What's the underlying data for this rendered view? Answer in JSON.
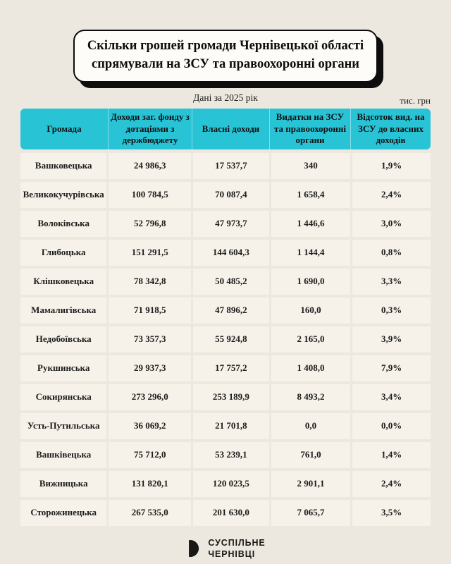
{
  "header": {
    "title_line1": "Скільки грошей громади Чернівецької області",
    "title_line2": "спрямували на ЗСУ та правоохоронні органи",
    "subtitle": "Дані за 2025 рік",
    "unit": "тис. грн"
  },
  "table": {
    "columns": [
      "Громада",
      "Доходи заг. фонду з дотаціями з держбюджету",
      "Власні доходи",
      "Видатки на ЗСУ та правоохоронні органи",
      "Відсоток вид. на ЗСУ до власних доходів"
    ],
    "rows": [
      {
        "name": "Вашковецька",
        "income_total": "24 986,3",
        "own_income": "17 537,7",
        "military_spend": "340",
        "percent": "1,9%"
      },
      {
        "name": "Великокучурівська",
        "income_total": "100 784,5",
        "own_income": "70 087,4",
        "military_spend": "1 658,4",
        "percent": "2,4%"
      },
      {
        "name": "Волоківська",
        "income_total": "52 796,8",
        "own_income": "47 973,7",
        "military_spend": "1 446,6",
        "percent": "3,0%"
      },
      {
        "name": "Глибоцька",
        "income_total": "151 291,5",
        "own_income": "144 604,3",
        "military_spend": "1 144,4",
        "percent": "0,8%"
      },
      {
        "name": "Клішковецька",
        "income_total": "78 342,8",
        "own_income": "50 485,2",
        "military_spend": "1 690,0",
        "percent": "3,3%"
      },
      {
        "name": "Мамалигівська",
        "income_total": "71 918,5",
        "own_income": "47 896,2",
        "military_spend": "160,0",
        "percent": "0,3%"
      },
      {
        "name": "Недобоївська",
        "income_total": "73 357,3",
        "own_income": "55 924,8",
        "military_spend": "2 165,0",
        "percent": "3,9%"
      },
      {
        "name": "Рукшинська",
        "income_total": "29 937,3",
        "own_income": "17 757,2",
        "military_spend": "1 408,0",
        "percent": "7,9%"
      },
      {
        "name": "Сокирянська",
        "income_total": "273 296,0",
        "own_income": "253 189,9",
        "military_spend": "8 493,2",
        "percent": "3,4%"
      },
      {
        "name": "Усть-Путильська",
        "income_total": "36 069,2",
        "own_income": "21 701,8",
        "military_spend": "0,0",
        "percent": "0,0%"
      },
      {
        "name": "Вашківецька",
        "income_total": "75 712,0",
        "own_income": "53 239,1",
        "military_spend": "761,0",
        "percent": "1,4%"
      },
      {
        "name": "Вижницька",
        "income_total": "131 820,1",
        "own_income": "120 023,5",
        "military_spend": "2 901,1",
        "percent": "2,4%"
      },
      {
        "name": "Сторожинецька",
        "income_total": "267 535,0",
        "own_income": "201 630,0",
        "military_spend": "7 065,7",
        "percent": "3,5%"
      }
    ]
  },
  "footer": {
    "brand_line1": "СУСПІЛЬНЕ",
    "brand_line2": "ЧЕРНІВЦІ"
  },
  "colors": {
    "background": "#EDE8DF",
    "cell_background": "#F6F2E9",
    "header_cyan": "#28C4D6",
    "accent_black": "#0D0D0D"
  }
}
